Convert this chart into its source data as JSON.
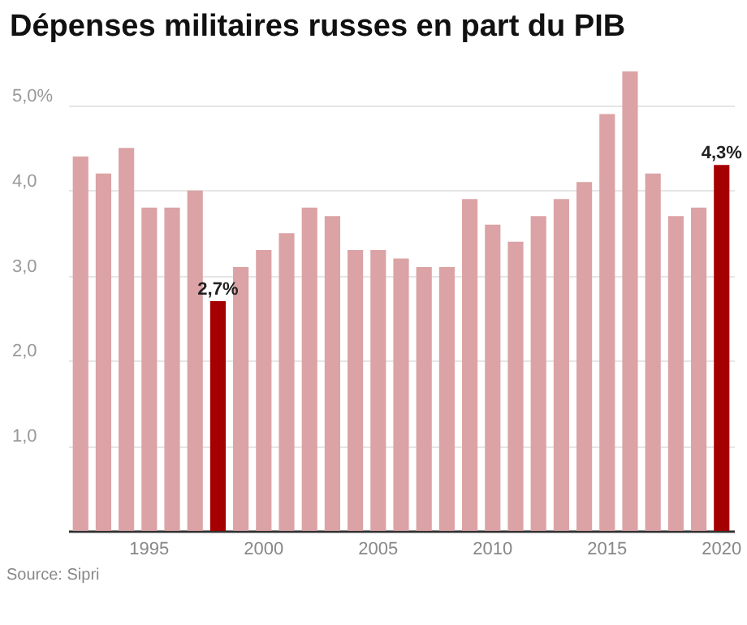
{
  "chart_data": {
    "type": "bar",
    "title": "Dépenses militaires russes en part du PIB",
    "categories": [
      null,
      null,
      null,
      "1995",
      null,
      null,
      null,
      null,
      "2000",
      null,
      null,
      null,
      null,
      "2005",
      null,
      null,
      null,
      null,
      "2010",
      null,
      null,
      null,
      null,
      "2015",
      null,
      null,
      null,
      null,
      "2020"
    ],
    "values": [
      4.4,
      4.2,
      4.5,
      3.8,
      3.8,
      4.0,
      2.7,
      3.1,
      3.3,
      3.5,
      3.8,
      3.7,
      3.3,
      3.3,
      3.2,
      3.1,
      3.1,
      3.9,
      3.6,
      3.4,
      3.7,
      3.9,
      4.1,
      4.9,
      5.4,
      4.2,
      3.7,
      3.8,
      4.3
    ],
    "colors": [
      "#dba3a5",
      "#dba3a5",
      "#dba3a5",
      "#dba3a5",
      "#dba3a5",
      "#dba3a5",
      "#a50000",
      "#dba3a5",
      "#dba3a5",
      "#dba3a5",
      "#dba3a5",
      "#dba3a5",
      "#dba3a5",
      "#dba3a5",
      "#dba3a5",
      "#dba3a5",
      "#dba3a5",
      "#dba3a5",
      "#dba3a5",
      "#dba3a5",
      "#dba3a5",
      "#dba3a5",
      "#dba3a5",
      "#dba3a5",
      "#dba3a5",
      "#dba3a5",
      "#dba3a5",
      "#dba3a5",
      "#a50000"
    ],
    "value_labels": [
      null,
      null,
      null,
      null,
      null,
      null,
      "2,7%",
      null,
      null,
      null,
      null,
      null,
      null,
      null,
      null,
      null,
      null,
      null,
      null,
      null,
      null,
      null,
      null,
      null,
      null,
      null,
      null,
      null,
      "4,3%"
    ],
    "ylim": [
      0,
      5.4
    ],
    "yticks": [
      {
        "value": 1,
        "label": "1,0"
      },
      {
        "value": 2,
        "label": "2,0"
      },
      {
        "value": 3,
        "label": "3,0"
      },
      {
        "value": 4,
        "label": "4,0"
      },
      {
        "value": 5,
        "label": "5,0%"
      }
    ],
    "grid": "y",
    "annotations": [
      "Source: Sipri"
    ]
  }
}
